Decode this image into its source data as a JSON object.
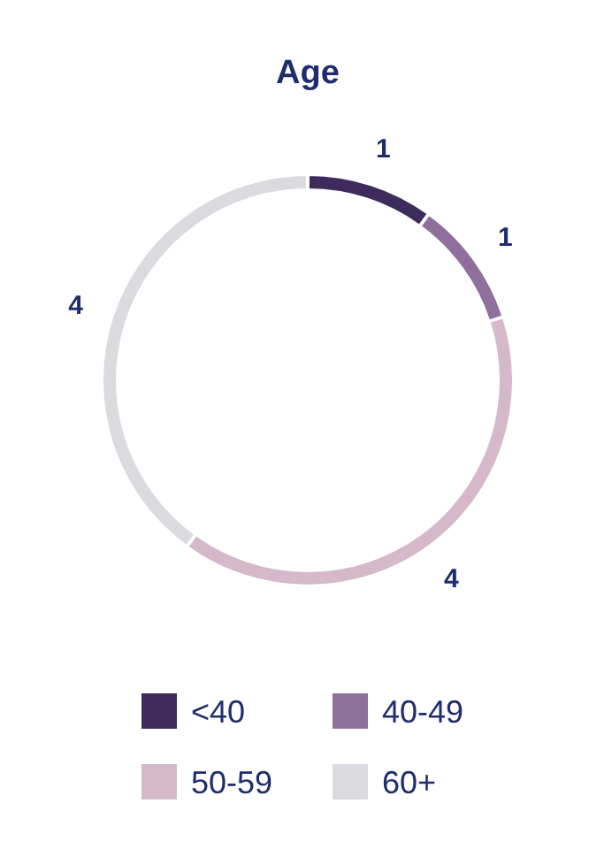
{
  "chart_data": {
    "type": "donut",
    "title": "Age",
    "categories": [
      "<40",
      "40-49",
      "50-59",
      "60+"
    ],
    "values": [
      1,
      1,
      4,
      4
    ],
    "colors": [
      "#3d2b5c",
      "#8f6f9c",
      "#d5b8c9",
      "#dadadf"
    ],
    "data_labels": true,
    "legend": "bottom"
  }
}
